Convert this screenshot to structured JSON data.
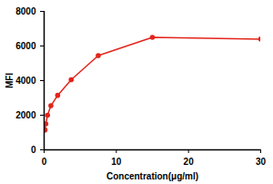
{
  "chart_data": {
    "type": "line",
    "x_label": "Concentration(μg/ml)",
    "y_label": "MFI",
    "x": [
      0.117,
      0.234,
      0.469,
      0.9375,
      1.875,
      3.75,
      7.5,
      15,
      30
    ],
    "series": [
      {
        "name": "MFI",
        "color": "#e3241b",
        "marker": "circle",
        "values": [
          1150,
          1500,
          2000,
          2550,
          3150,
          4050,
          5450,
          6500,
          6400
        ]
      }
    ],
    "xlim": [
      0,
      30
    ],
    "xticks": [
      0,
      10,
      20,
      30
    ],
    "ylim": [
      0,
      8000
    ],
    "yticks": [
      0,
      2000,
      4000,
      6000,
      8000
    ],
    "grid": false
  }
}
